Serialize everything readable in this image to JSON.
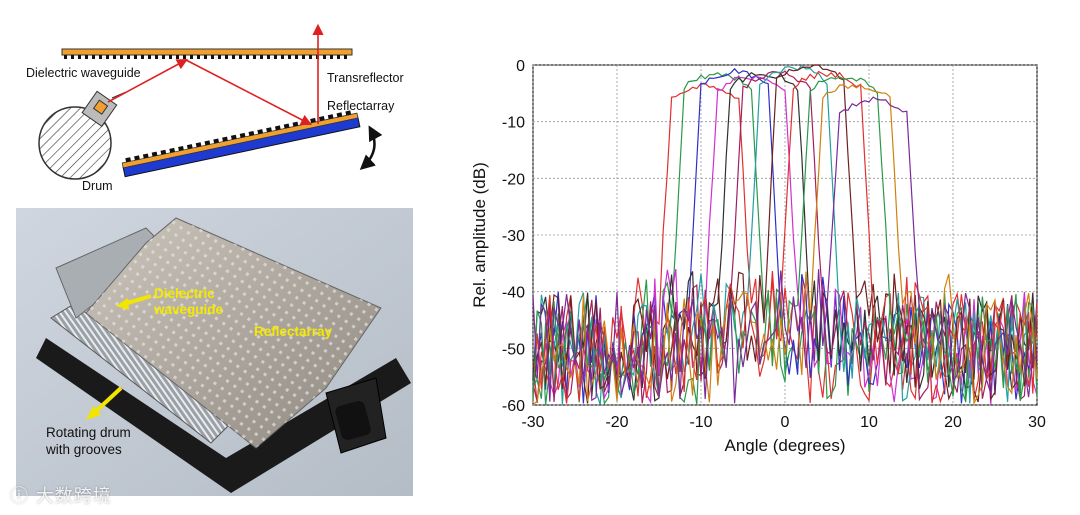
{
  "diagram": {
    "labels": {
      "dielectric_waveguide": "Dielectric waveguide",
      "transreflector": "Transreflector",
      "reflectarray": "Reflectarray",
      "drum": "Drum"
    }
  },
  "photo": {
    "labels": {
      "dielectric_waveguide": "Dielectric\nwaveguide",
      "reflectarray": "Reflectarray",
      "rotating_drum": "Rotating drum\nwith grooves"
    }
  },
  "watermark": "ⓘ 大数跨境",
  "chart_data": {
    "type": "line",
    "xlabel": "Angle (degrees)",
    "ylabel": "Rel. amplitude (dB)",
    "xlim": [
      -30,
      30
    ],
    "ylim": [
      -60,
      0
    ],
    "xticks": [
      -30,
      -20,
      -10,
      0,
      10,
      20,
      30
    ],
    "yticks": [
      0,
      -10,
      -20,
      -30,
      -40,
      -50,
      -60
    ],
    "grid": true,
    "series": [
      {
        "color": "#e03030",
        "peak_x": -9.5,
        "peak_y": -3.5
      },
      {
        "color": "#2a9a4a",
        "peak_x": -8.0,
        "peak_y": -1.5
      },
      {
        "color": "#3030c8",
        "peak_x": -6.0,
        "peak_y": -1.2
      },
      {
        "color": "#d030d0",
        "peak_x": -4.0,
        "peak_y": -2.0
      },
      {
        "color": "#303030",
        "peak_x": -2.5,
        "peak_y": -1.5
      },
      {
        "color": "#a02060",
        "peak_x": -1.0,
        "peak_y": -1.5
      },
      {
        "color": "#20a0a0",
        "peak_x": 1.0,
        "peak_y": -0.5
      },
      {
        "color": "#702020",
        "peak_x": 3.0,
        "peak_y": -0.3
      },
      {
        "color": "#e03030",
        "peak_x": 5.0,
        "peak_y": -1.5
      },
      {
        "color": "#2a9a4a",
        "peak_x": 7.0,
        "peak_y": -2.0
      },
      {
        "color": "#d08010",
        "peak_x": 8.5,
        "peak_y": -3.5
      },
      {
        "color": "#7a2a9a",
        "peak_x": 10.5,
        "peak_y": -6.0
      }
    ]
  }
}
